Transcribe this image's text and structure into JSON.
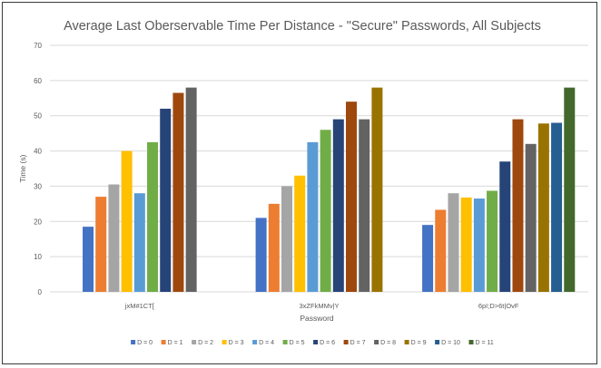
{
  "chart_data": {
    "type": "bar",
    "title": "Average Last Oberservable Time Per Distance - \"Secure\" Passwords, All Subjects",
    "xlabel": "Password",
    "ylabel": "Time (s)",
    "ylim": [
      0,
      70
    ],
    "yticks": [
      0,
      10,
      20,
      30,
      40,
      50,
      60,
      70
    ],
    "grid": true,
    "legend_position": "bottom",
    "categories": [
      "jxM#1CT[",
      "3xZFkMMv|Y",
      "6pI;D>6t|OvF"
    ],
    "series": [
      {
        "name": "D = 0",
        "color": "#4472c4",
        "values": [
          18.5,
          21,
          19
        ]
      },
      {
        "name": "D = 1",
        "color": "#ed7d31",
        "values": [
          27,
          25,
          23.3
        ]
      },
      {
        "name": "D = 2",
        "color": "#a5a5a5",
        "values": [
          30.5,
          30,
          28
        ]
      },
      {
        "name": "D = 3",
        "color": "#ffc000",
        "values": [
          40,
          33,
          26.8
        ]
      },
      {
        "name": "D = 4",
        "color": "#5b9bd5",
        "values": [
          28,
          42.5,
          26.5
        ]
      },
      {
        "name": "D = 5",
        "color": "#70ad47",
        "values": [
          42.5,
          46,
          28.7
        ]
      },
      {
        "name": "D = 6",
        "color": "#264478",
        "values": [
          52,
          49,
          37
        ]
      },
      {
        "name": "D = 7",
        "color": "#9e480e",
        "values": [
          56.5,
          54,
          49
        ]
      },
      {
        "name": "D = 8",
        "color": "#636363",
        "values": [
          58,
          49,
          42
        ]
      },
      {
        "name": "D = 9",
        "color": "#997300",
        "values": [
          0,
          58,
          47.8
        ]
      },
      {
        "name": "D = 10",
        "color": "#255e91",
        "values": [
          0,
          0,
          48
        ]
      },
      {
        "name": "D = 11",
        "color": "#43682b",
        "values": [
          0,
          0,
          58
        ]
      }
    ]
  }
}
